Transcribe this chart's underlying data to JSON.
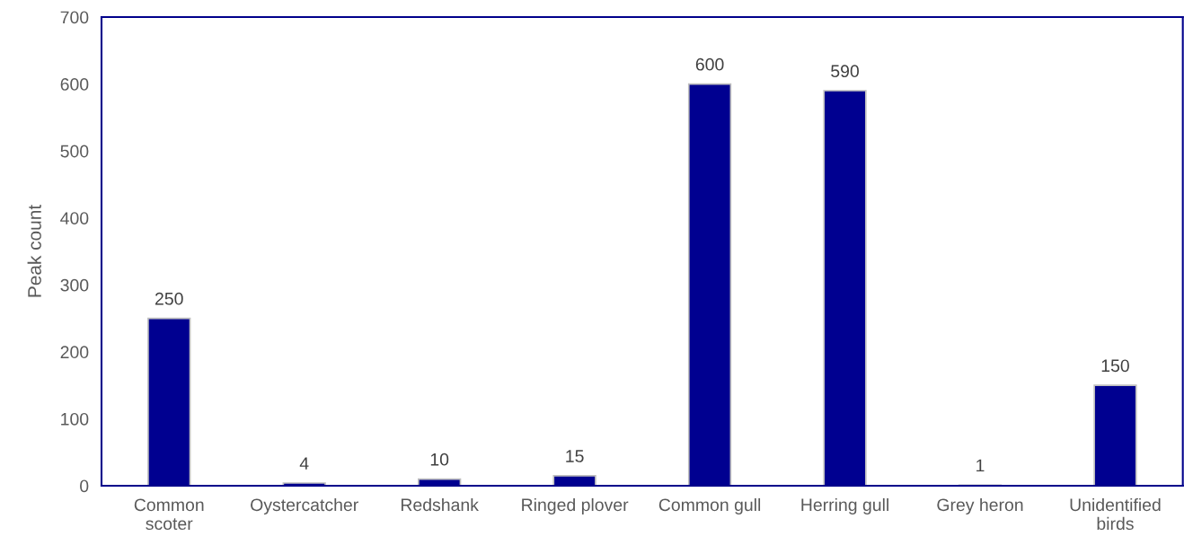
{
  "chart_data": {
    "type": "bar",
    "ylabel": "Peak count",
    "categories": [
      "Common\nscoter",
      "Oystercatcher",
      "Redshank",
      "Ringed plover",
      "Common gull",
      "Herring gull",
      "Grey heron",
      "Unidentified\nbirds"
    ],
    "values": [
      250,
      4,
      10,
      15,
      600,
      590,
      1,
      150
    ],
    "color": "#000090",
    "ylim": [
      0,
      700
    ],
    "yticks": [
      0,
      100,
      200,
      300,
      400,
      500,
      600,
      700
    ],
    "data_labels": true,
    "grid": false,
    "legend": false
  }
}
